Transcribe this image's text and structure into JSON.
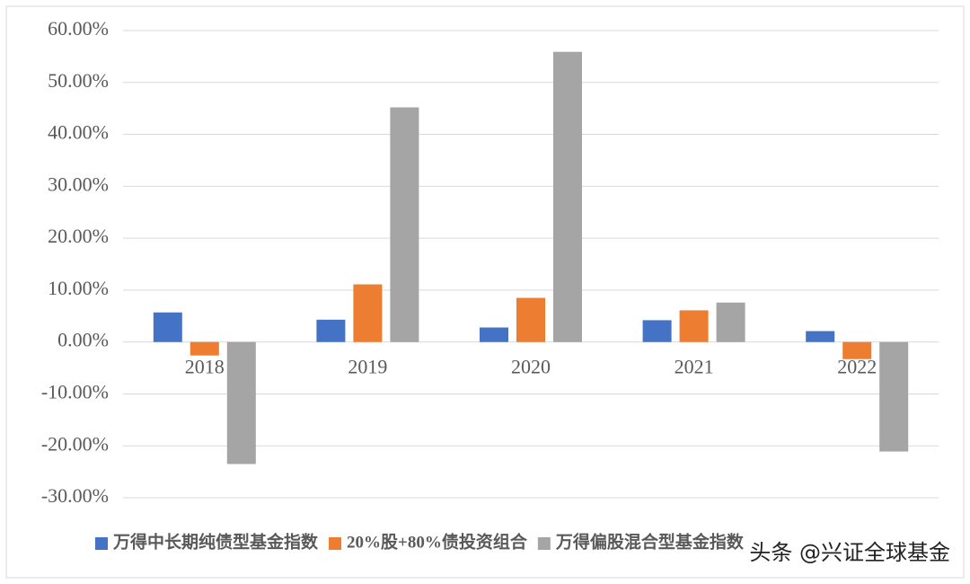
{
  "chart_data": {
    "type": "bar",
    "categories": [
      "2018",
      "2019",
      "2020",
      "2021",
      "2022"
    ],
    "series": [
      {
        "name": "万得中长期纯债型基金指数",
        "color": "#4472c4",
        "values": [
          5.7,
          4.3,
          2.8,
          4.2,
          2.1
        ]
      },
      {
        "name": "20%股+80%债投资组合",
        "color": "#ed7d31",
        "values": [
          -2.6,
          11.1,
          8.5,
          6.1,
          -3.3
        ]
      },
      {
        "name": "万得偏股混合型基金指数",
        "color": "#a5a5a5",
        "values": [
          -23.5,
          45.2,
          55.9,
          7.6,
          -21.1
        ]
      }
    ],
    "ylim": [
      -30,
      60
    ],
    "yticks": [
      {
        "value": -30,
        "label": "-30.00%"
      },
      {
        "value": -20,
        "label": "-20.00%"
      },
      {
        "value": -10,
        "label": "-10.00%"
      },
      {
        "value": 0,
        "label": "0.00%"
      },
      {
        "value": 10,
        "label": "10.00%"
      },
      {
        "value": 20,
        "label": "20.00%"
      },
      {
        "value": 30,
        "label": "30.00%"
      },
      {
        "value": 40,
        "label": "40.00%"
      },
      {
        "value": 50,
        "label": "50.00%"
      },
      {
        "value": 60,
        "label": "60.00%"
      }
    ],
    "grid": true,
    "legend": "bottom",
    "watermark": "头条 @兴证全球基金"
  }
}
